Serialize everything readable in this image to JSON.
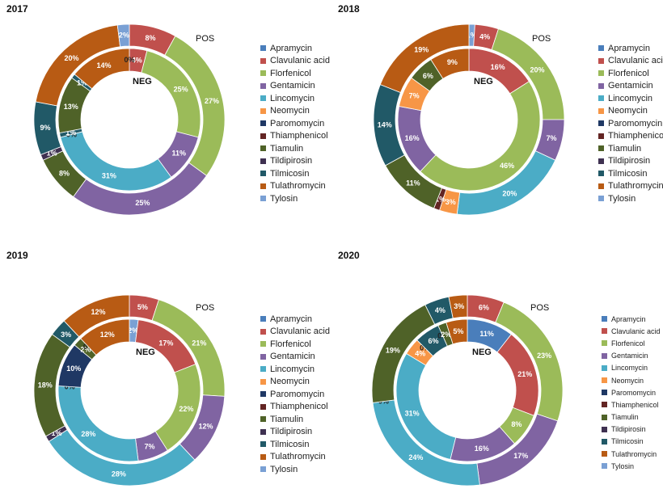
{
  "figure": {
    "pos_label": "POS",
    "neg_label": "NEG"
  },
  "legend_labels": [
    "Apramycin",
    "Clavulanic acid",
    "Florfenicol",
    "Gentamicin",
    "Lincomycin",
    "Neomycin",
    "Paromomycin",
    "Thiamphenicol",
    "Tiamulin",
    "Tildipirosin",
    "Tilmicosin",
    "Tulathromycin",
    "Tylosin"
  ],
  "colors": {
    "Apramycin": "#4a7ebb",
    "Clavulanic acid": "#c0504d",
    "Florfenicol": "#9bbb59",
    "Gentamicin": "#8064a2",
    "Lincomycin": "#4bacc6",
    "Neomycin": "#f79646",
    "Paromomycin": "#1f3864",
    "Thiamphenicol": "#632523",
    "Tiamulin": "#4f6228",
    "Tildipirosin": "#3f3151",
    "Tilmicosin": "#215967",
    "Tulathromycin": "#b85b14",
    "Tylosin": "#7aa0d4"
  },
  "chart_data": [
    {
      "type": "pie",
      "variant": "nested-donut",
      "title": "2017",
      "inner_label": "NEG",
      "outer_label": "POS",
      "outer_ring": {
        "name": "POS",
        "slices": [
          {
            "label": "Clavulanic acid",
            "value": 8,
            "text": "8%"
          },
          {
            "label": "Florfenicol",
            "value": 27,
            "text": "27%"
          },
          {
            "label": "Gentamicin",
            "value": 25,
            "text": "25%"
          },
          {
            "label": "Tiamulin",
            "value": 8,
            "text": "8%"
          },
          {
            "label": "Tildipirosin",
            "value": 1,
            "text": "1%"
          },
          {
            "label": "Tilmicosin",
            "value": 9,
            "text": "9%"
          },
          {
            "label": "Tulathromycin",
            "value": 20,
            "text": "20%"
          },
          {
            "label": "Tylosin",
            "value": 2,
            "text": "2%"
          }
        ]
      },
      "inner_ring": {
        "name": "NEG",
        "slices": [
          {
            "label": "Clavulanic acid",
            "value": 4,
            "text": "4%"
          },
          {
            "label": "Florfenicol",
            "value": 25,
            "text": "25%"
          },
          {
            "label": "Gentamicin",
            "value": 11,
            "text": "11%"
          },
          {
            "label": "Lincomycin",
            "value": 31,
            "text": "31%"
          },
          {
            "label": "Neomycin",
            "value": 0,
            "text": "0%"
          },
          {
            "label": "Tilmicosin",
            "value": 1,
            "text": "1%"
          },
          {
            "label": "Tiamulin",
            "value": 13,
            "text": "13%"
          },
          {
            "label": "Tilmicosin",
            "value": 1,
            "text": "1%"
          },
          {
            "label": "Tulathromycin",
            "value": 14,
            "text": "14%"
          },
          {
            "label": "Tylosin",
            "value": 0,
            "text": "0%"
          }
        ]
      }
    },
    {
      "type": "pie",
      "variant": "nested-donut",
      "title": "2018",
      "inner_label": "NEG",
      "outer_label": "POS",
      "outer_ring": {
        "name": "POS",
        "slices": [
          {
            "label": "Tylosin",
            "value": 1,
            "text": "1%"
          },
          {
            "label": "Clavulanic acid",
            "value": 4,
            "text": "4%"
          },
          {
            "label": "Florfenicol",
            "value": 20,
            "text": "20%"
          },
          {
            "label": "Gentamicin",
            "value": 7,
            "text": "7%"
          },
          {
            "label": "Lincomycin",
            "value": 20,
            "text": "20%"
          },
          {
            "label": "Neomycin",
            "value": 3,
            "text": "3%"
          },
          {
            "label": "Thiamphenicol",
            "value": 1,
            "text": "1%"
          },
          {
            "label": "Tiamulin",
            "value": 11,
            "text": "11%"
          },
          {
            "label": "Tilmicosin",
            "value": 14,
            "text": "14%"
          },
          {
            "label": "Tulathromycin",
            "value": 19,
            "text": "19%"
          }
        ]
      },
      "inner_ring": {
        "name": "NEG",
        "slices": [
          {
            "label": "Clavulanic acid",
            "value": 16,
            "text": "16%"
          },
          {
            "label": "Florfenicol",
            "value": 46,
            "text": "46%"
          },
          {
            "label": "Gentamicin",
            "value": 16,
            "text": "16%"
          },
          {
            "label": "Neomycin",
            "value": 7,
            "text": "7%"
          },
          {
            "label": "Tiamulin",
            "value": 6,
            "text": "6%"
          },
          {
            "label": "Tulathromycin",
            "value": 9,
            "text": "9%"
          }
        ]
      }
    },
    {
      "type": "pie",
      "variant": "nested-donut",
      "title": "2019",
      "inner_label": "NEG",
      "outer_label": "POS",
      "outer_ring": {
        "name": "POS",
        "slices": [
          {
            "label": "Tylosin",
            "value": 0,
            "text": "0%"
          },
          {
            "label": "Clavulanic acid",
            "value": 5,
            "text": "5%"
          },
          {
            "label": "Florfenicol",
            "value": 21,
            "text": "21%"
          },
          {
            "label": "Gentamicin",
            "value": 12,
            "text": "12%"
          },
          {
            "label": "Lincomycin",
            "value": 28,
            "text": "28%"
          },
          {
            "label": "Tildipirosin",
            "value": 1,
            "text": "1%"
          },
          {
            "label": "Tiamulin",
            "value": 18,
            "text": "18%"
          },
          {
            "label": "Tilmicosin",
            "value": 3,
            "text": "3%"
          },
          {
            "label": "Tulathromycin",
            "value": 12,
            "text": "12%"
          }
        ]
      },
      "inner_ring": {
        "name": "NEG",
        "slices": [
          {
            "label": "Tylosin",
            "value": 2,
            "text": "2%"
          },
          {
            "label": "Clavulanic acid",
            "value": 17,
            "text": "17%"
          },
          {
            "label": "Florfenicol",
            "value": 22,
            "text": "22%"
          },
          {
            "label": "Gentamicin",
            "value": 7,
            "text": "7%"
          },
          {
            "label": "Lincomycin",
            "value": 28,
            "text": "28%"
          },
          {
            "label": "Neomycin",
            "value": 0,
            "text": "0%"
          },
          {
            "label": "Paromomycin",
            "value": 10,
            "text": "10%"
          },
          {
            "label": "Tiamulin",
            "value": 2,
            "text": "2%"
          },
          {
            "label": "Tilmicosin",
            "value": 0,
            "text": "0%"
          },
          {
            "label": "Tulathromycin",
            "value": 12,
            "text": "12%"
          }
        ]
      }
    },
    {
      "type": "pie",
      "variant": "nested-donut",
      "title": "2020",
      "inner_label": "NEG",
      "outer_label": "POS",
      "outer_ring": {
        "name": "POS",
        "slices": [
          {
            "label": "Tylosin",
            "value": 0,
            "text": "0%"
          },
          {
            "label": "Clavulanic acid",
            "value": 6,
            "text": "6%"
          },
          {
            "label": "Florfenicol",
            "value": 23,
            "text": "23%"
          },
          {
            "label": "Gentamicin",
            "value": 17,
            "text": "17%"
          },
          {
            "label": "Lincomycin",
            "value": 24,
            "text": "24%"
          },
          {
            "label": "Neomycin",
            "value": 0,
            "text": "0%"
          },
          {
            "label": "Tiamulin",
            "value": 19,
            "text": "19%"
          },
          {
            "label": "Tilmicosin",
            "value": 4,
            "text": "4%"
          },
          {
            "label": "Tulathromycin",
            "value": 3,
            "text": "3%"
          }
        ]
      },
      "inner_ring": {
        "name": "NEG",
        "slices": [
          {
            "label": "Apramycin",
            "value": 11,
            "text": "11%"
          },
          {
            "label": "Clavulanic acid",
            "value": 21,
            "text": "21%"
          },
          {
            "label": "Florfenicol",
            "value": 8,
            "text": "8%"
          },
          {
            "label": "Gentamicin",
            "value": 16,
            "text": "16%"
          },
          {
            "label": "Lincomycin",
            "value": 31,
            "text": "31%"
          },
          {
            "label": "Neomycin",
            "value": 4,
            "text": "4%"
          },
          {
            "label": "Paromomycin",
            "value": 0,
            "text": "0%"
          },
          {
            "label": "Tilmicosin",
            "value": 6,
            "text": "6%"
          },
          {
            "label": "Tilmicosin",
            "value": 0,
            "text": "0%"
          },
          {
            "label": "Tiamulin",
            "value": 2,
            "text": "2%"
          },
          {
            "label": "Tulathromycin",
            "value": 5,
            "text": "5%"
          }
        ]
      }
    }
  ]
}
